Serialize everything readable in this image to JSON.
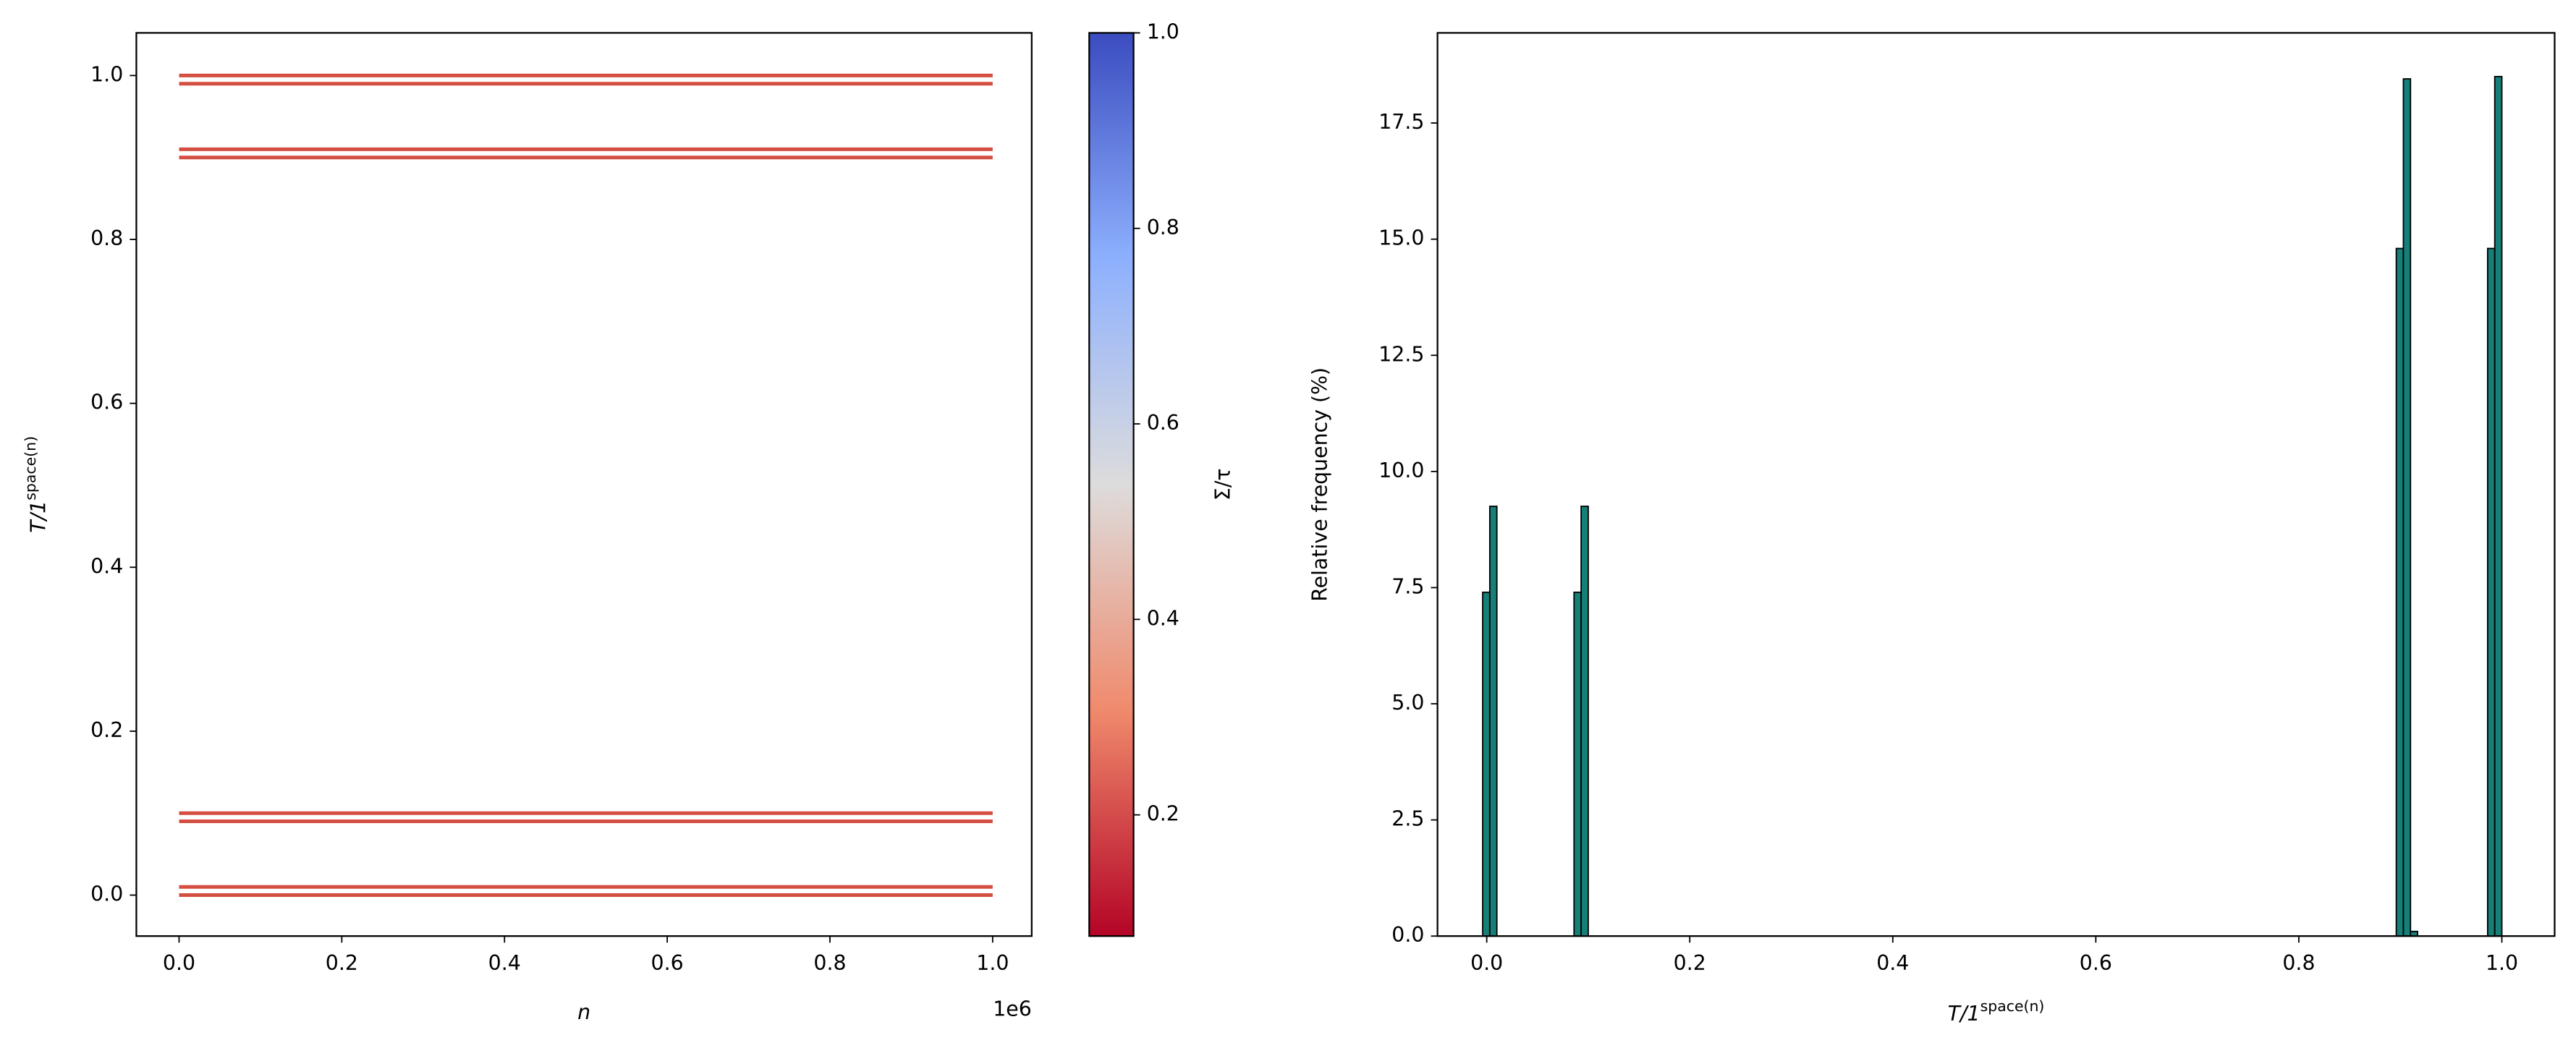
{
  "chart_data": [
    {
      "type": "line",
      "xlabel": "n",
      "x_offset_label": "1e6",
      "ylabel": {
        "base": "T/1",
        "sup": "space(n)"
      },
      "x": [
        0,
        1000000
      ],
      "series": [
        {
          "color": "#d44e41",
          "values": [
            0,
            0
          ]
        },
        {
          "color": "#d44e41",
          "values": [
            0.01,
            0.01
          ]
        },
        {
          "color": "#d44e41",
          "values": [
            0.09,
            0.09
          ]
        },
        {
          "color": "#d44e41",
          "values": [
            0.1,
            0.1
          ]
        },
        {
          "color": "#d44e41",
          "values": [
            0.9,
            0.9
          ]
        },
        {
          "color": "#d44e41",
          "values": [
            0.91,
            0.91
          ]
        },
        {
          "color": "#d44e41",
          "values": [
            0.99,
            0.99
          ]
        },
        {
          "color": "#d44e41",
          "values": [
            1.0,
            1.0
          ]
        }
      ],
      "xlim": [
        -52500,
        1048000
      ],
      "xticks": [
        {
          "value": 0,
          "label": "0.0"
        },
        {
          "value": 200000,
          "label": "0.2"
        },
        {
          "value": 400000,
          "label": "0.4"
        },
        {
          "value": 600000,
          "label": "0.6"
        },
        {
          "value": 800000,
          "label": "0.8"
        },
        {
          "value": 1000000,
          "label": "1.0"
        }
      ],
      "ylim": [
        -0.05,
        1.052
      ],
      "yticks": [
        {
          "value": 0,
          "label": "0.0"
        },
        0.2,
        0.4,
        0.6,
        0.8,
        {
          "value": 1,
          "label": "1.0"
        }
      ],
      "colorbar": {
        "label": "Σ/τ",
        "lim": [
          0.076,
          1.0
        ],
        "ticks": [
          0.2,
          0.4,
          0.6,
          0.8,
          {
            "value": 1,
            "label": "1.0"
          }
        ]
      }
    },
    {
      "type": "histogram",
      "xlabel": {
        "base": "T/1",
        "sup": "space(n)"
      },
      "ylabel": "Relative frequency (%)",
      "color": "#167f78",
      "bins": [
        -0.004,
        0.003,
        0.01,
        0.086,
        0.093,
        0.1,
        0.896,
        0.903,
        0.91,
        0.917,
        0.986,
        0.993,
        1.0
      ],
      "counts": [
        7.4,
        9.25,
        0,
        7.4,
        9.25,
        0,
        14.8,
        18.45,
        0.1,
        0,
        14.8,
        18.5
      ],
      "xlim": [
        -0.0485,
        1.052
      ],
      "xticks": [
        {
          "value": 0,
          "label": "0.0"
        },
        0.2,
        0.4,
        0.6,
        0.8,
        {
          "value": 1,
          "label": "1.0"
        }
      ],
      "ylim": [
        0,
        19.44
      ],
      "yticks": [
        {
          "value": 0,
          "label": "0.0"
        },
        2.5,
        {
          "value": 5,
          "label": "5.0"
        },
        7.5,
        {
          "value": 10,
          "label": "10.0"
        },
        12.5,
        {
          "value": 15,
          "label": "15.0"
        },
        17.5
      ]
    }
  ]
}
